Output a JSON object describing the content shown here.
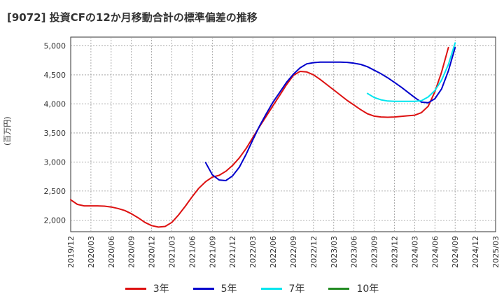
{
  "chart_data": {
    "type": "line",
    "title": "[9072]  投資CFの12か月移動合計の標準偏差の推移",
    "ylabel": "(百万円)",
    "xlabel": "",
    "ylim": [
      1800,
      5150
    ],
    "yticks": [
      2000,
      2500,
      3000,
      3500,
      4000,
      4500,
      5000
    ],
    "ytick_labels": [
      "2,000",
      "2,500",
      "3,000",
      "3,500",
      "4,000",
      "4,500",
      "5,000"
    ],
    "xticks": [
      "2019/12",
      "2020/03",
      "2020/06",
      "2020/09",
      "2020/12",
      "2021/03",
      "2021/06",
      "2021/09",
      "2021/12",
      "2022/03",
      "2022/06",
      "2022/09",
      "2022/12",
      "2023/03",
      "2023/06",
      "2023/09",
      "2023/12",
      "2024/03",
      "2024/06",
      "2024/09",
      "2024/12",
      "2025/03"
    ],
    "grid": true,
    "legend_position": "bottom",
    "series": [
      {
        "name": "3年",
        "color": "#dd1111",
        "start": "2019/12",
        "values": [
          2350,
          2270,
          2245,
          2245,
          2245,
          2240,
          2225,
          2200,
          2165,
          2110,
          2040,
          1960,
          1905,
          1880,
          1890,
          1960,
          2090,
          2240,
          2400,
          2550,
          2660,
          2740,
          2770,
          2840,
          2940,
          3070,
          3230,
          3420,
          3610,
          3790,
          3970,
          4150,
          4330,
          4490,
          4560,
          4550,
          4500,
          4420,
          4330,
          4240,
          4150,
          4060,
          3980,
          3900,
          3830,
          3790,
          3775,
          3770,
          3775,
          3785,
          3795,
          3805,
          3850,
          3960,
          4210,
          4550,
          4970
        ]
      },
      {
        "name": "5年",
        "color": "#0000cc",
        "start": "2021/08",
        "values": [
          2990,
          2780,
          2690,
          2680,
          2760,
          2910,
          3130,
          3380,
          3620,
          3830,
          4030,
          4200,
          4370,
          4510,
          4620,
          4690,
          4710,
          4720,
          4720,
          4720,
          4720,
          4715,
          4700,
          4680,
          4640,
          4580,
          4520,
          4450,
          4370,
          4290,
          4200,
          4110,
          4030,
          4020,
          4090,
          4260,
          4570,
          4970
        ]
      },
      {
        "name": "7年",
        "color": "#00e5ee",
        "start": "2023/08",
        "values": [
          4180,
          4110,
          4070,
          4050,
          4045,
          4045,
          4045,
          4045,
          4055,
          4120,
          4230,
          4410,
          4680,
          5050
        ]
      },
      {
        "name": "10年",
        "color": "#228b22",
        "start": "2019/12",
        "values": []
      }
    ]
  }
}
